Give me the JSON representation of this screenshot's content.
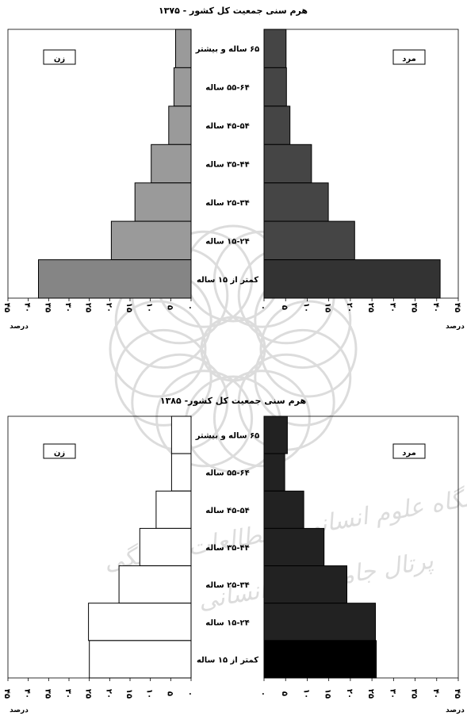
{
  "watermark": {
    "line1": "پژوهشگاه علوم انسانی و مطالعات فرهنگی",
    "line2": "پرتال جامع علوم انسانی",
    "color": "#9e9e9e"
  },
  "chart_data": [
    {
      "type": "bar",
      "orientation": "horizontal-pyramid",
      "title": "هرم سنی جمعیت کل کشور - ۱۳۷۵",
      "categories": [
        "۶۵ ساله و بیشتر",
        "۵۵-۶۴ ساله",
        "۴۵-۵۴ ساله",
        "۳۵-۴۴ ساله",
        "۲۵-۳۴ ساله",
        "۱۵-۲۴ ساله",
        "کمتر از ۱۵ ساله"
      ],
      "series": [
        {
          "name": "زن",
          "side": "left",
          "values": [
            3.8,
            4.2,
            5.5,
            9.8,
            13.8,
            19.6,
            37.5
          ],
          "fill": "#9a9a9a",
          "fill_dark": "#858585"
        },
        {
          "name": "مرد",
          "side": "right",
          "values": [
            5.1,
            5.2,
            6.0,
            11.0,
            14.9,
            21.0,
            40.8
          ],
          "fill": "#454545",
          "fill_dark": "#333333"
        }
      ],
      "xlim": [
        0,
        45
      ],
      "tick_values": [
        0,
        5,
        10,
        15,
        20,
        25,
        30,
        35,
        40,
        45
      ],
      "tick_labels": [
        "۰",
        "۵",
        "۱۰",
        "۱۵",
        "۲۰",
        "۲۵",
        "۳۰",
        "۳۵",
        "۴۰",
        "۴۵"
      ],
      "xlabel": "درصد",
      "legend_placement": "inside-top"
    },
    {
      "type": "bar",
      "orientation": "horizontal-pyramid",
      "title": "هرم سنی جمعیت کل کشور- ۱۳۸۵",
      "categories": [
        "۶۵ ساله و بیشتر",
        "۵۵-۶۴ ساله",
        "۴۵-۵۴ ساله",
        "۳۵-۴۴ ساله",
        "۲۵-۳۴ ساله",
        "۱۵-۲۴ ساله",
        "کمتر از ۱۵ ساله"
      ],
      "series": [
        {
          "name": "زن",
          "side": "left",
          "values": [
            4.8,
            4.8,
            8.6,
            12.6,
            17.7,
            25.2,
            25.0
          ],
          "fill": "#ffffff",
          "fill_dark": "#ffffff"
        },
        {
          "name": "مرد",
          "side": "right",
          "values": [
            5.4,
            4.8,
            9.2,
            13.9,
            19.2,
            25.8,
            26.0
          ],
          "fill": "#222222",
          "fill_dark": "#000000"
        }
      ],
      "xlim": [
        0,
        45
      ],
      "tick_values": [
        0,
        5,
        10,
        15,
        20,
        25,
        30,
        35,
        40,
        45
      ],
      "tick_labels": [
        "۰",
        "۵",
        "۱۰",
        "۱۵",
        "۲۰",
        "۲۵",
        "۳۰",
        "۳۵",
        "۴۰",
        "۴۵"
      ],
      "xlabel": "درصد",
      "legend_placement": "inside-top"
    }
  ]
}
